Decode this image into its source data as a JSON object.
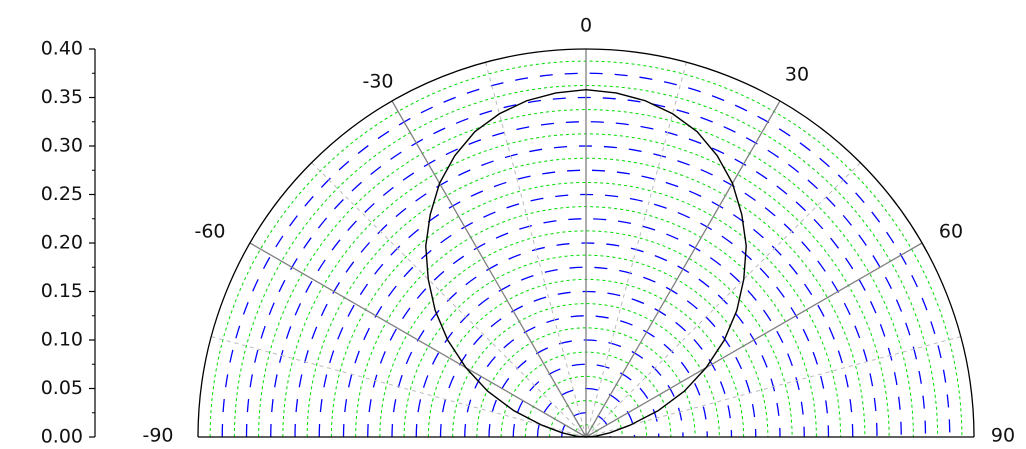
{
  "chart_data": {
    "type": "polar-semicircle",
    "title": "",
    "radial_axis": {
      "range": [
        0,
        0.4
      ],
      "ticks": [
        "0.00",
        "0.05",
        "0.10",
        "0.15",
        "0.20",
        "0.25",
        "0.30",
        "0.35",
        "0.40"
      ],
      "tick_values": [
        0,
        0.05,
        0.1,
        0.15,
        0.2,
        0.25,
        0.3,
        0.35,
        0.4
      ]
    },
    "angular_axis": {
      "range_deg": [
        -90,
        90
      ],
      "labels": [
        "-90",
        "-60",
        "-30",
        "0",
        "30",
        "60",
        "90"
      ],
      "label_values": [
        -90,
        -60,
        -30,
        0,
        30,
        60,
        90
      ],
      "spokes_deg": [
        -60,
        -30,
        0,
        30,
        60
      ]
    },
    "grid": {
      "blue_dashed_rings": [
        0.025,
        0.05,
        0.075,
        0.1,
        0.125,
        0.15,
        0.175,
        0.2,
        0.225,
        0.25,
        0.275,
        0.3,
        0.325,
        0.35,
        0.375
      ],
      "green_dotted_rings": [
        0.0125,
        0.0375,
        0.0625,
        0.0875,
        0.1125,
        0.1375,
        0.1625,
        0.1875,
        0.2125,
        0.2375,
        0.2625,
        0.2875,
        0.3125,
        0.3375,
        0.3625,
        0.3875
      ],
      "gray_dashed_spokes_deg": [
        -75,
        -45,
        -15,
        15,
        45,
        75
      ]
    },
    "series": [
      {
        "theta_deg": [
          -90,
          -85,
          -80,
          -75,
          -70,
          -65,
          -60,
          -55,
          -50,
          -45,
          -40,
          -35,
          -30,
          -25,
          -20,
          -15,
          -10,
          -5,
          0,
          5,
          10,
          15,
          20,
          25,
          30,
          35,
          40,
          45,
          50,
          55,
          60,
          65,
          70,
          75,
          80,
          85,
          90
        ],
        "r": [
          0.0,
          0.01,
          0.025,
          0.047,
          0.079,
          0.112,
          0.143,
          0.174,
          0.203,
          0.23,
          0.257,
          0.28,
          0.302,
          0.32,
          0.335,
          0.345,
          0.352,
          0.356,
          0.358,
          0.356,
          0.352,
          0.345,
          0.335,
          0.32,
          0.302,
          0.28,
          0.257,
          0.23,
          0.203,
          0.174,
          0.143,
          0.112,
          0.079,
          0.047,
          0.025,
          0.01,
          0.0
        ]
      }
    ],
    "colors": {
      "outline": "#000000",
      "spoke": "#808080",
      "blue_ring": "#0000ff",
      "green_ring": "#00dd00",
      "gray_spoke": "#bbbbbb",
      "series": "#000000"
    }
  }
}
